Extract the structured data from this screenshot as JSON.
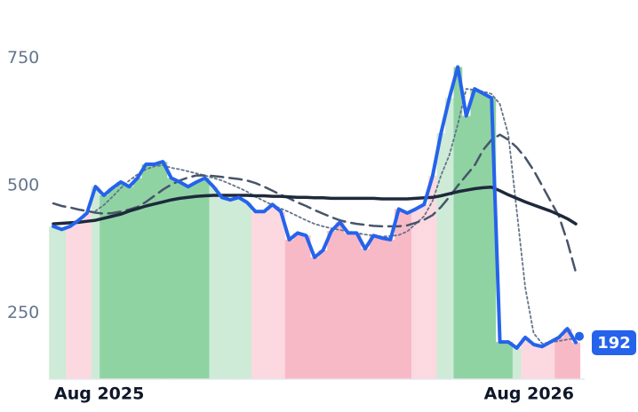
{
  "chart_data": {
    "type": "line",
    "x": [
      0,
      1,
      2,
      3,
      4,
      5,
      6,
      7,
      8,
      9,
      10,
      11,
      12,
      13,
      14,
      15,
      16,
      17,
      18,
      19,
      20,
      21,
      22,
      23,
      24,
      25,
      26,
      27,
      28,
      29,
      30,
      31,
      32,
      33,
      34,
      35,
      36,
      37,
      38,
      39,
      40,
      41,
      42,
      43,
      44,
      45,
      46,
      47,
      48,
      49,
      50,
      51,
      52,
      53,
      54,
      55,
      56,
      57,
      58,
      59,
      60,
      61,
      62
    ],
    "xlim": [
      0,
      62
    ],
    "xticks": [
      {
        "value": 0,
        "label": "Aug 2025"
      },
      {
        "value": 51,
        "label": "Aug 2026"
      }
    ],
    "ylim": [
      120,
      800
    ],
    "yticks": [
      250,
      500,
      750
    ],
    "grid": false,
    "series": [
      {
        "color": "#2563eb",
        "style": "solid",
        "width": 4,
        "values": [
          420,
          414,
          420,
          432,
          446,
          498,
          481,
          495,
          507,
          498,
          515,
          542,
          542,
          547,
          515,
          507,
          498,
          507,
          515,
          498,
          477,
          472,
          477,
          467,
          449,
          449,
          463,
          449,
          394,
          407,
          402,
          359,
          373,
          411,
          428,
          407,
          407,
          376,
          402,
          397,
          394,
          454,
          446,
          454,
          463,
          519,
          603,
          672,
          733,
          637,
          690,
          681,
          672,
          193,
          193,
          181,
          202,
          188,
          184,
          193,
          202,
          219,
          192
        ]
      },
      {
        "color": "#1e293b",
        "style": "solid",
        "width": 3.5,
        "values": [
          425,
          426,
          427,
          428,
          430,
          432,
          436,
          440,
          444,
          450,
          455,
          460,
          464,
          468,
          472,
          475,
          477,
          479,
          480,
          481,
          481,
          481,
          481,
          481,
          480,
          480,
          479,
          479,
          478,
          477,
          477,
          476,
          476,
          475,
          475,
          475,
          475,
          475,
          475,
          474,
          474,
          474,
          474,
          475,
          476,
          477,
          480,
          484,
          488,
          491,
          494,
          496,
          497,
          490,
          482,
          475,
          468,
          462,
          456,
          450,
          443,
          435,
          425
        ]
      },
      {
        "color": "#475569",
        "style": "dashed",
        "width": 2.5,
        "values": [
          465,
          460,
          457,
          453,
          450,
          447,
          445,
          446,
          449,
          453,
          458,
          468,
          480,
          492,
          502,
          510,
          516,
          520,
          520,
          519,
          517,
          515,
          513,
          510,
          505,
          498,
          490,
          482,
          475,
          467,
          460,
          452,
          445,
          438,
          432,
          428,
          425,
          423,
          421,
          420,
          420,
          420,
          422,
          427,
          433,
          442,
          458,
          478,
          500,
          520,
          540,
          570,
          590,
          600,
          590,
          575,
          555,
          530,
          500,
          470,
          440,
          390,
          330
        ]
      },
      {
        "color": "#64748b",
        "style": "dotted",
        "width": 1.8,
        "values": [
          null,
          null,
          null,
          null,
          null,
          450,
          462,
          478,
          495,
          510,
          522,
          532,
          538,
          540,
          535,
          532,
          528,
          524,
          520,
          515,
          510,
          503,
          496,
          488,
          478,
          470,
          462,
          455,
          448,
          440,
          432,
          425,
          420,
          416,
          413,
          410,
          407,
          404,
          402,
          400,
          401,
          403,
          410,
          425,
          440,
          470,
          520,
          560,
          620,
          690,
          688,
          685,
          680,
          660,
          600,
          450,
          300,
          210,
          190,
          192,
          195,
          198,
          200
        ]
      }
    ],
    "regions": [
      {
        "start": 0,
        "end": 1,
        "color": "#cdebd6"
      },
      {
        "start": 2,
        "end": 4,
        "color": "#fcd9e0"
      },
      {
        "start": 5,
        "end": 5,
        "color": "#cdebd6"
      },
      {
        "start": 6,
        "end": 18,
        "color": "#8fd3a3"
      },
      {
        "start": 19,
        "end": 23,
        "color": "#cdebd6"
      },
      {
        "start": 24,
        "end": 27,
        "color": "#fcd9e0"
      },
      {
        "start": 28,
        "end": 42,
        "color": "#f8b9c6"
      },
      {
        "start": 43,
        "end": 45,
        "color": "#fcd9e0"
      },
      {
        "start": 46,
        "end": 47,
        "color": "#cdebd6"
      },
      {
        "start": 48,
        "end": 54,
        "color": "#8fd3a3"
      },
      {
        "start": 55,
        "end": 55,
        "color": "#cdebd6"
      },
      {
        "start": 56,
        "end": 59,
        "color": "#fcd9e0"
      },
      {
        "start": 60,
        "end": 62,
        "color": "#f8b9c6"
      }
    ]
  }
}
